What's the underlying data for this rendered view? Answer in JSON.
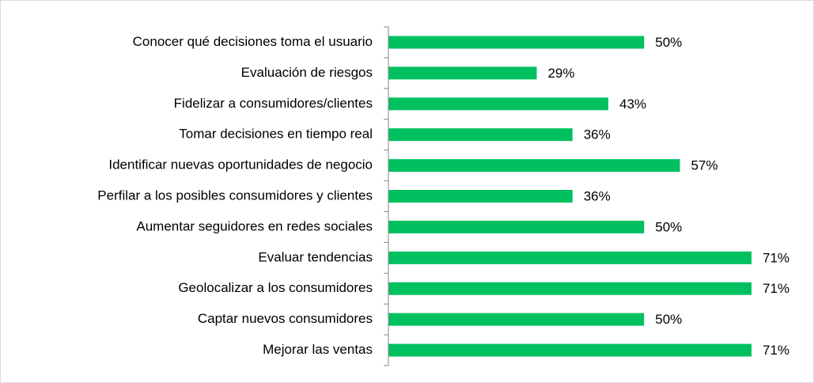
{
  "chart_data": {
    "type": "barh",
    "categories": [
      "Conocer qué decisiones toma el usuario",
      "Evaluación de riesgos",
      "Fidelizar a consumidores/clientes",
      "Tomar decisiones en tiempo real",
      "Identificar nuevas oportunidades de negocio",
      "Perfilar a los posibles consumidores y clientes",
      "Aumentar seguidores en redes sociales",
      "Evaluar tendencias",
      "Geolocalizar a los consumidores",
      "Captar nuevos consumidores",
      "Mejorar las ventas"
    ],
    "values": [
      50,
      29,
      43,
      36,
      57,
      36,
      50,
      71,
      71,
      50,
      71
    ],
    "value_labels": [
      "50%",
      "29%",
      "43%",
      "36%",
      "57%",
      "36%",
      "50%",
      "71%",
      "71%",
      "50%",
      "71%"
    ],
    "color": "#00c060"
  }
}
